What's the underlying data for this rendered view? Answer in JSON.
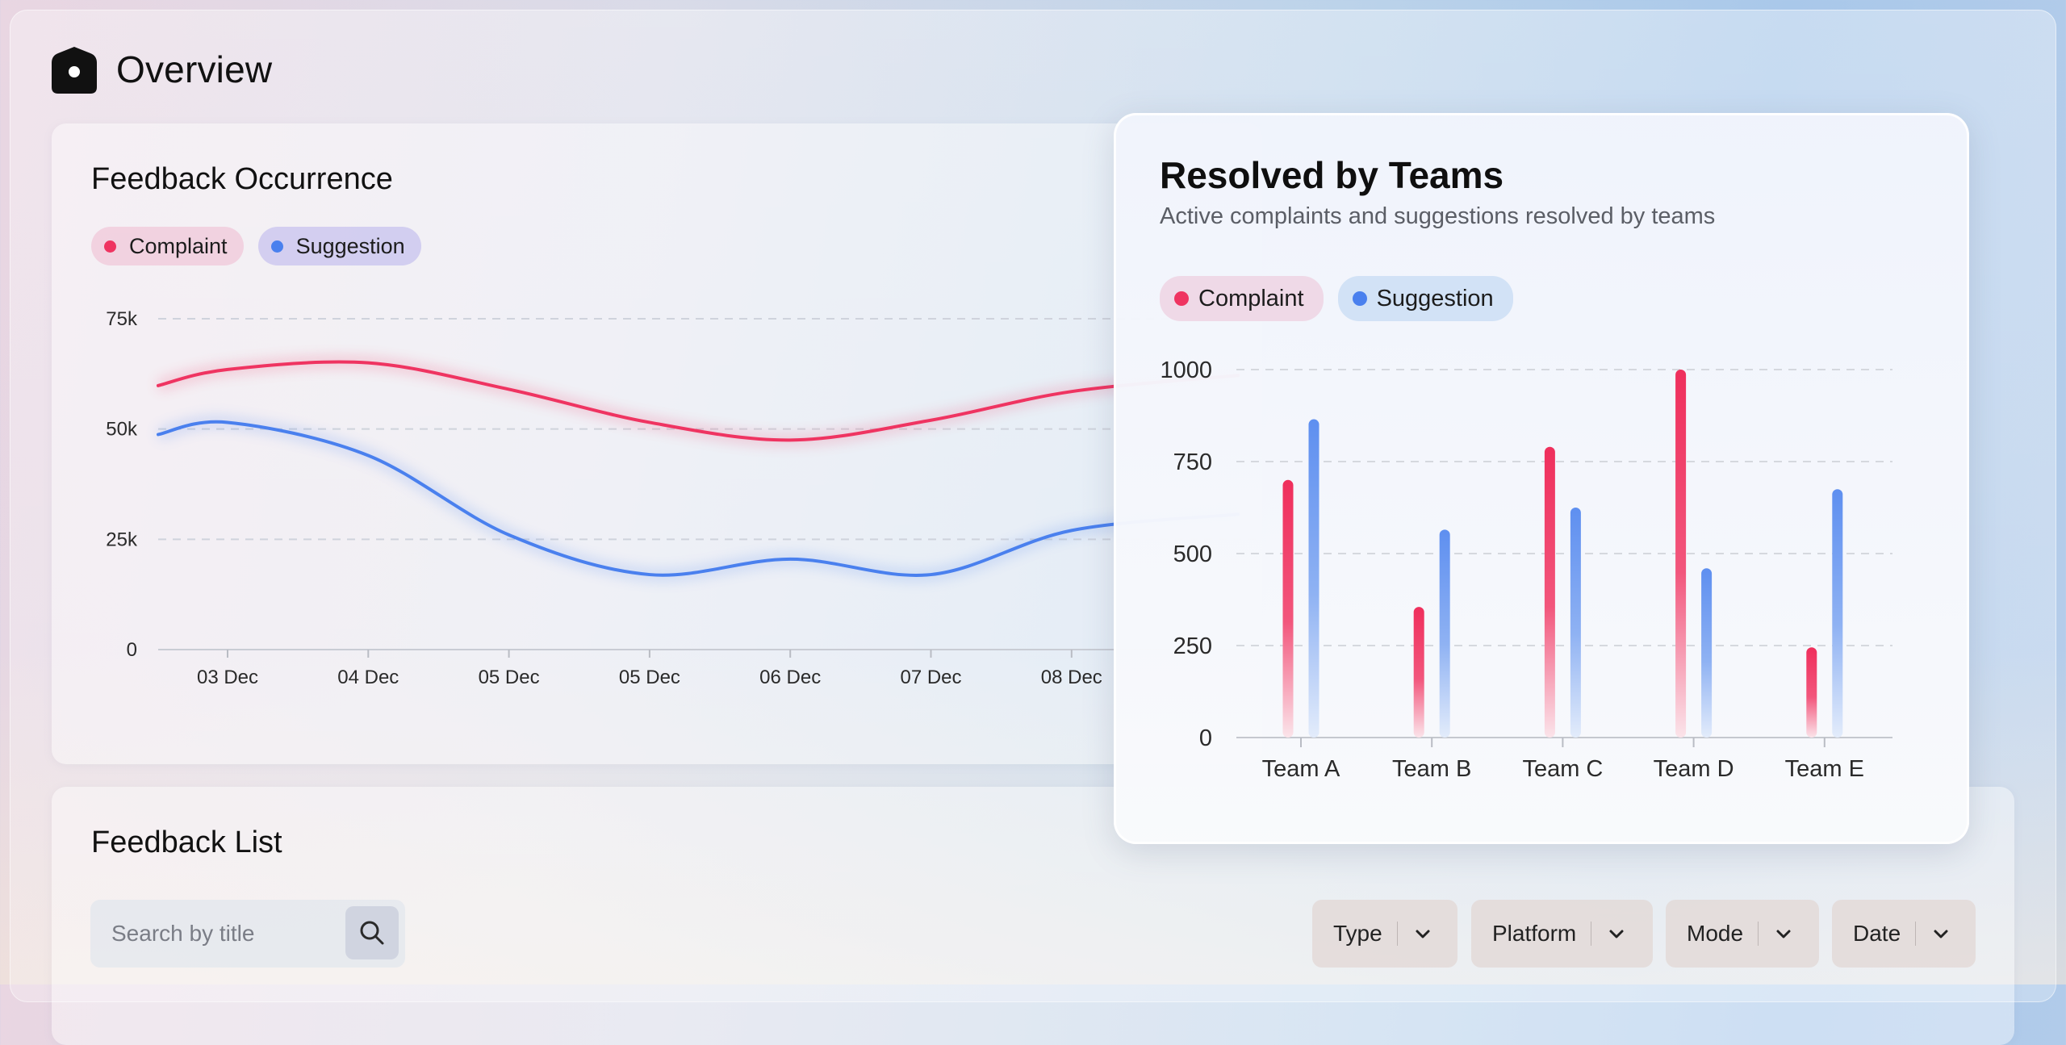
{
  "header": {
    "title": "Overview"
  },
  "occurrence": {
    "title": "Feedback Occurrence",
    "legend": {
      "complaint": "Complaint",
      "suggestion": "Suggestion"
    }
  },
  "resolved": {
    "title": "Resolved by Teams",
    "subtitle": "Active complaints and suggestions resolved by teams",
    "legend": {
      "complaint": "Complaint",
      "suggestion": "Suggestion"
    }
  },
  "list": {
    "title": "Feedback List",
    "search_placeholder": "Search by title",
    "filters": {
      "type": "Type",
      "platform": "Platform",
      "mode": "Mode",
      "date": "Date"
    }
  },
  "colors": {
    "complaint": "#ef3461",
    "suggestion": "#4a80ee"
  },
  "chart_data": [
    {
      "type": "line",
      "title": "Feedback Occurrence",
      "x": [
        "03 Dec",
        "04 Dec",
        "05 Dec",
        "05 Dec",
        "06 Dec",
        "07 Dec",
        "08 Dec"
      ],
      "yticks": [
        "0",
        "25k",
        "50k",
        "75k"
      ],
      "ylim": [
        0,
        75000
      ],
      "grid": true,
      "legend_position": "top-left",
      "series": [
        {
          "name": "Complaint",
          "values": [
            63500,
            65000,
            59000,
            51500,
            47500,
            52000,
            58500
          ]
        },
        {
          "name": "Suggestion",
          "values": [
            51500,
            44000,
            26000,
            17000,
            20500,
            17000,
            27000
          ]
        }
      ]
    },
    {
      "type": "bar",
      "title": "Resolved by Teams",
      "categories": [
        "Team A",
        "Team B",
        "Team C",
        "Team D",
        "Team E"
      ],
      "yticks": [
        "0",
        "250",
        "500",
        "750",
        "1000"
      ],
      "ylim": [
        0,
        1000
      ],
      "grid": true,
      "legend_position": "top-left",
      "series": [
        {
          "name": "Complaint",
          "values": [
            700,
            355,
            790,
            1000,
            245
          ]
        },
        {
          "name": "Suggestion",
          "values": [
            865,
            565,
            625,
            460,
            675
          ]
        }
      ]
    }
  ]
}
